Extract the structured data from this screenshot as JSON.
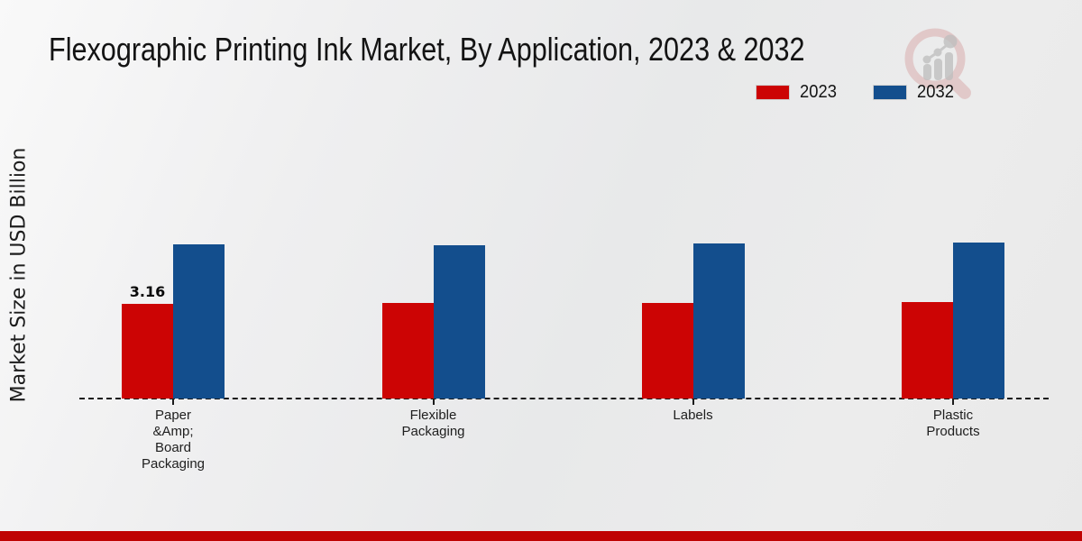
{
  "title": "Flexographic Printing Ink Market, By Application, 2023 & 2032",
  "y_axis_label": "Market Size in USD Billion",
  "legend": [
    {
      "label": "2023",
      "color": "#cc0404"
    },
    {
      "label": "2032",
      "color": "#134e8d"
    }
  ],
  "watermark": {
    "name": "market-research-magnifier-logo",
    "ring_color": "#d8a7a7",
    "chart_color": "#bdbdbd"
  },
  "chart_data": {
    "type": "bar",
    "title": "Flexographic Printing Ink Market, By Application, 2023 & 2032",
    "ylabel": "Market Size in USD Billion",
    "xlabel": "",
    "categories": [
      "Paper &Amp; Board Packaging",
      "Flexible Packaging",
      "Labels",
      "Plastic Products"
    ],
    "category_lines": [
      [
        "Paper",
        "&Amp;",
        "Board",
        "Packaging"
      ],
      [
        "Flexible",
        "Packaging"
      ],
      [
        "Labels"
      ],
      [
        "Plastic",
        "Products"
      ]
    ],
    "series": [
      {
        "name": "2023",
        "color": "#cc0404",
        "values": [
          3.16,
          3.21,
          3.2,
          3.24
        ]
      },
      {
        "name": "2032",
        "color": "#134e8d",
        "values": [
          5.18,
          5.13,
          5.19,
          5.24
        ]
      }
    ],
    "data_labels": [
      {
        "series_index": 0,
        "category_index": 0,
        "text": "3.16"
      }
    ],
    "ylim": [
      0,
      6
    ],
    "grid": false,
    "baseline_style": "dashed",
    "legend_position": "top-right"
  },
  "footer": {
    "stripe_color": "#bf0303"
  }
}
